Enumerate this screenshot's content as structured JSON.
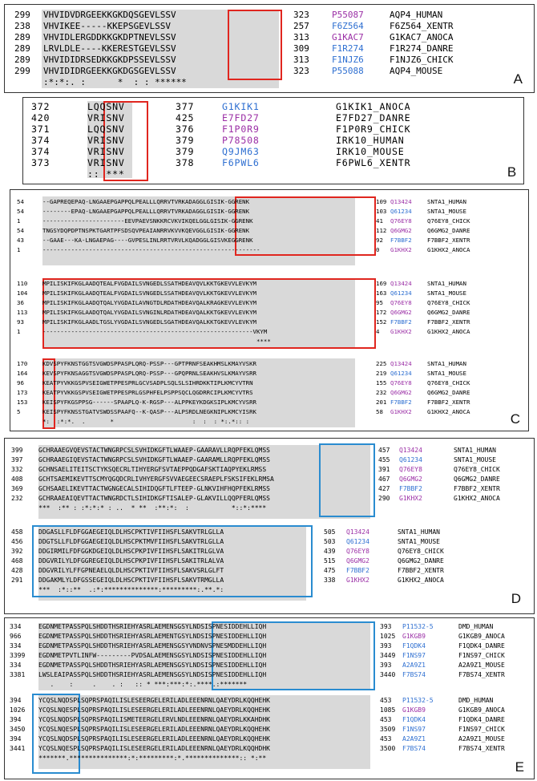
{
  "figure": {
    "panels": [
      {
        "id": "A",
        "label": "A",
        "blocks": [
          {
            "rows": [
              {
                "s": "299",
                "seq": "VHVIDVDRGEEKKGKDQSGEVLSSV",
                "e": "323",
                "acc": "P55087",
                "acc_color": "p",
                "name": "AQP4_HUMAN"
              },
              {
                "s": "238",
                "seq": "VHVIKEE-----KKEPSGEVLSSV",
                "e": "257",
                "acc": "F6Z564",
                "acc_color": "b",
                "name": "F6Z564_XENTR"
              },
              {
                "s": "289",
                "seq": "VHVIDLERGDDKKGKDPTNEVLSSV",
                "e": "313",
                "acc": "G1KAC7",
                "acc_color": "p",
                "name": "G1KAC7_ANOCA"
              },
              {
                "s": "289",
                "seq": "LRVLDLE----KKERESTGEVLSSV",
                "e": "309",
                "acc": "F1R274",
                "acc_color": "b",
                "name": "F1R274_DANRE"
              },
              {
                "s": "289",
                "seq": "VHVIDIDRSEDKKGKDPSSEVLSSV",
                "e": "313",
                "acc": "F1NJZ6",
                "acc_color": "b",
                "name": "F1NJZ6_CHICK"
              },
              {
                "s": "299",
                "seq": "VHVIDIDRGEEKKGKDGSGEVLSSV",
                "e": "323",
                "acc": "P55088",
                "acc_color": "b",
                "name": "AQP4_MOUSE"
              }
            ],
            "consensus": ":*:*:. :      *  : : ******"
          }
        ]
      },
      {
        "id": "B",
        "label": "B",
        "blocks": [
          {
            "rows": [
              {
                "s": "372",
                "seq": "LQQSNV",
                "e": "377",
                "acc": "G1KIK1",
                "acc_color": "b",
                "name": "G1KIK1_ANOCA"
              },
              {
                "s": "420",
                "seq": "VRISNV",
                "e": "425",
                "acc": "E7FD27",
                "acc_color": "p",
                "name": "E7FD27_DANRE"
              },
              {
                "s": "371",
                "seq": "LQQSNV",
                "e": "376",
                "acc": "F1P0R9",
                "acc_color": "p",
                "name": "F1P0R9_CHICK"
              },
              {
                "s": "374",
                "seq": "VRISNV",
                "e": "379",
                "acc": "P78508",
                "acc_color": "p",
                "name": "IRK10_HUMAN"
              },
              {
                "s": "374",
                "seq": "VRISNV",
                "e": "379",
                "acc": "Q9JM63",
                "acc_color": "b",
                "name": "IRK10_MOUSE"
              },
              {
                "s": "373",
                "seq": "VRISNV",
                "e": "378",
                "acc": "F6PWL6",
                "acc_color": "b",
                "name": "F6PWL6_XENTR"
              }
            ],
            "consensus": ":: ***"
          }
        ]
      },
      {
        "id": "C",
        "label": "C",
        "blocks": [
          {
            "rows": [
              {
                "s": "54",
                "seq": "--GAPREQEPAQ-LNGAAEPGAPPQLPEALLLQRRVTVRKADAGGLGISIK-GGRENK",
                "e": "109",
                "acc": "Q13424",
                "acc_color": "p",
                "name": "SNTA1_HUMAN"
              },
              {
                "s": "54",
                "seq": "--------EPAQ-LNGAAEPGAPPQLPEALLLQRRVTVRKADAGGLGISIK-GGRENK",
                "e": "103",
                "acc": "Q61234",
                "acc_color": "b",
                "name": "SNTA1_MOUSE"
              },
              {
                "s": "1",
                "seq": "-----------------------EEVPAEVSNKKRCVKVIKQELGGLGISIK-GGRENK",
                "e": "41",
                "acc": "Q76EY8",
                "acc_color": "p",
                "name": "Q76EY8_CHICK"
              },
              {
                "s": "54",
                "seq": "TNGSYDQPDPTNSPKTGARTPFSDSQVPEAIANRRVKVVKQEVGGLGISIK-GGRENK",
                "e": "112",
                "acc": "Q6GMG2",
                "acc_color": "p",
                "name": "Q6GMG2_DANRE"
              },
              {
                "s": "43",
                "seq": "--GAAE---KA-LNGAEPAG----GVPESLINLRRTVRVLKQADGGLGISVKEGGRENK",
                "e": "92",
                "acc": "F7BBF2",
                "acc_color": "b",
                "name": "F7BBF2_XENTR"
              },
              {
                "s": "1",
                "seq": "-------------------------------------------------------------",
                "e": "0",
                "acc": "G1KHX2",
                "acc_color": "p",
                "name": "G1KHX2_ANOCA"
              }
            ],
            "consensus": ""
          },
          {
            "rows": [
              {
                "s": "110",
                "seq": "MPILISKIFKGLAADQTEALFVGDAILSVNGEDLSSATHDEAVQVLKKTGKEVVLEVKYM",
                "e": "169",
                "acc": "Q13424",
                "acc_color": "p",
                "name": "SNTA1_HUMAN"
              },
              {
                "s": "104",
                "seq": "MPILISKIFKGLAADQTEALFVGDAILSVNGEDLSSATHDEAVQVLKKTGKEVVLEVKYM",
                "e": "163",
                "acc": "Q61234",
                "acc_color": "b",
                "name": "SNTA1_MOUSE"
              },
              {
                "s": "36",
                "seq": "MPILISKIFKGLAADQTQALYVGDAILAVNGTDLRDATHDEAVQALKRAGKEVVLEVKYM",
                "e": "95",
                "acc": "Q76EY8",
                "acc_color": "p",
                "name": "Q76EY8_CHICK"
              },
              {
                "s": "113",
                "seq": "MPILISKIFKGLAADQTQALYVGDAILSVNGINLRDATHDEAVQALKKTGKEVVLEVKYM",
                "e": "172",
                "acc": "Q6GMG2",
                "acc_color": "p",
                "name": "Q6GMG2_DANRE"
              },
              {
                "s": "93",
                "seq": "MPILISKIFKGLAADLTGSLYVGDAILSVNGEDLSGATHDEAVQALKKTGKEVVLEVKYM",
                "e": "152",
                "acc": "F7BBF2",
                "acc_color": "b",
                "name": "F7BBF2_XENTR"
              },
              {
                "s": "1",
                "seq": "-----------------------------------------------------------VKYM",
                "e": "4",
                "acc": "G1KHX2",
                "acc_color": "p",
                "name": "G1KHX2_ANOCA"
              }
            ],
            "consensus": "                                                            ****"
          },
          {
            "rows": [
              {
                "s": "170",
                "seq": "KDVSPYFKNSTGGTSVGWDSPPASPLQRQ-PSSP---GPTPRNFSEAKHMSLKMAYVSKR",
                "e": "225",
                "acc": "Q13424",
                "acc_color": "p",
                "name": "SNTA1_HUMAN"
              },
              {
                "s": "164",
                "seq": "KEVSPYFKNSAGGTSVGWDSPPASPLQRQ-PSSP---GPQPRNLSEAKHVSLKMAYVSRR",
                "e": "219",
                "acc": "Q61234",
                "acc_color": "b",
                "name": "SNTA1_MOUSE"
              },
              {
                "s": "96",
                "seq": "KEATPYVKKGSPVSEIGWETPPESPRLGCVSADPLSQLSLSIHRDKKTIPLKMCYVTRN",
                "e": "155",
                "acc": "Q76EY8",
                "acc_color": "p",
                "name": "Q76EY8_CHICK"
              },
              {
                "s": "173",
                "seq": "KEATPYVKKGSPVSEIGWETPPESPRLGSPHFELPSPPSQCLQGDRRCIPLKMCYVTRS",
                "e": "232",
                "acc": "Q6GMG2",
                "acc_color": "p",
                "name": "Q6GMG2_DANRE"
              },
              {
                "s": "153",
                "seq": "KEISPYFKGSPPSG------SPAAPLQ-K-RGSP---ALPPKEYKDGKSIPLKMCYVSRR",
                "e": "201",
                "acc": "F7BBF2",
                "acc_color": "b",
                "name": "F7BBF2_XENTR"
              },
              {
                "s": "5",
                "seq": "KEISPYFKNSSTGATVSWDSSPAAFQ--K-QASP---ALPSRDLNEGKNIPLKMCYISRK",
                "e": "58",
                "acc": "G1KHX2",
                "acc_color": "p",
                "name": "G1KHX2_ANOCA"
              }
            ],
            "consensus": "*:  :*:*.  .       *                      :  :  : *:.*:: :"
          }
        ]
      },
      {
        "id": "D",
        "label": "D",
        "blocks": [
          {
            "rows": [
              {
                "s": "399",
                "seq": "GCHRAAEGVQEVSTACTWNGRPCSLSVHIDKGFTLWAAEP-GAARAVLLRQPFEKLQMSS",
                "e": "457",
                "acc": "Q13424",
                "acc_color": "p",
                "name": "SNTA1_HUMAN"
              },
              {
                "s": "397",
                "seq": "GCHRAAEGIQEVSTACTWNGRPCSLSVHIDKGFTLWAAEP-GAARAMLLRQPFEKLQMSS",
                "e": "455",
                "acc": "Q61234",
                "acc_color": "b",
                "name": "SNTA1_MOUSE"
              },
              {
                "s": "332",
                "seq": "GCHNSAELITEITSCTYKSQECRLTIHYERGFSVTAEPPQDGAFSKTIAQPYEKLRMSS",
                "e": "391",
                "acc": "Q76EY8",
                "acc_color": "p",
                "name": "Q76EY8_CHICK"
              },
              {
                "s": "408",
                "seq": "GCHTSAEMIKEVTTSCMYQGQDCRLIVHYERGFSVVAEGEECSRAEPLFSKSIFEKLRMSA",
                "e": "467",
                "acc": "Q6GMG2",
                "acc_color": "p",
                "name": "Q6GMG2_DANRE"
              },
              {
                "s": "369",
                "seq": "GCHSAAELIKEVTTACTWGNGECALSIHIDQGFTLFTEEP-GLNKVIHFHQPFEKLRMSS",
                "e": "427",
                "acc": "F7BBF2",
                "acc_color": "b",
                "name": "F7BBF2_XENTR"
              },
              {
                "s": "232",
                "seq": "GCHRAAEAIQEVTTACTWNGRDCTLSIHIDKGFTISALEP-GLAKVILLQQPFERLQMSS",
                "e": "290",
                "acc": "G1KHX2",
                "acc_color": "p",
                "name": "G1KHX2_ANOCA"
              }
            ],
            "consensus": "***  :** : :*:*:* : ..  * **  :**:*:  :           *::*:****"
          },
          {
            "rows": [
              {
                "s": "458",
                "seq": "DDGASLLFLDFGGAEGEIQLDLHSCPKTIVFIIHSFLSAKVTRLGLLA",
                "e": "505",
                "acc": "Q13424",
                "acc_color": "p",
                "name": "SNTA1_HUMAN"
              },
              {
                "s": "456",
                "seq": "DDGTSLLFLDFGGAEGEIQLDLHSCPKTMVFIIHSFLSAKVTRLGLLA",
                "e": "503",
                "acc": "Q61234",
                "acc_color": "b",
                "name": "SNTA1_MOUSE"
              },
              {
                "s": "392",
                "seq": "DDGIRMILFDFGGKDGEIQLDLHSCPKPIVFIIHSFLSAKITRLGLVA",
                "e": "439",
                "acc": "Q76EY8",
                "acc_color": "p",
                "name": "Q76EY8_CHICK"
              },
              {
                "s": "468",
                "seq": "DDGVRILYLDFGGREGEIQLDLHSCPKPIVFIIHSFLSAKITRLALVA",
                "e": "515",
                "acc": "Q6GMG2",
                "acc_color": "p",
                "name": "Q6GMG2_DANRE"
              },
              {
                "s": "428",
                "seq": "DDGVRILYLFFGPNEAELQLDLHSCPKTIVFIIHSFLSAKVSRLGLFT",
                "e": "475",
                "acc": "F7BBF2",
                "acc_color": "b",
                "name": "F7BBF2_XENTR"
              },
              {
                "s": "291",
                "seq": "DDGAKMLYLDFGSSEGEIQLDLHSCPKTIVFIIHSFLSAKVTRMGLLA",
                "e": "338",
                "acc": "G1KHX2",
                "acc_color": "p",
                "name": "G1KHX2_ANOCA"
              }
            ],
            "consensus": "***  :*::**  .:*:**************:*********:.**.*:"
          }
        ]
      },
      {
        "id": "E",
        "label": "E",
        "blocks": [
          {
            "rows": [
              {
                "s": "334",
                "seq": "EGDNMETPASSPQLSHDDTHSRIEHYASRLAEMENSGSYLNDSISPNESIDDEHLLIQH",
                "e": "393",
                "acc": "P11532-5",
                "acc_color": "b",
                "name": "DMD_HUMAN"
              },
              {
                "s": "966",
                "seq": "EGDNMETPASSPQLSHDDTHSRIEHYASRLAEMENTGSYLNDSISPNESIDDEHLLIQH",
                "e": "1025",
                "acc": "G1KGB9",
                "acc_color": "p",
                "name": "G1KGB9_ANOCA"
              },
              {
                "s": "334",
                "seq": "EGDNMETPASSPQLSHDDTHSRIEHYASRLAEMENSGSYVNDNVSPNESMDDEHLLIQH",
                "e": "393",
                "acc": "F1QDK4",
                "acc_color": "b",
                "name": "F1QDK4_DANRE"
              },
              {
                "s": "3399",
                "seq": "EGDNMETPVTLINFW---------PVDSALAEMENSGSYLNDSISPNESIDDEHLLIQH",
                "e": "3449",
                "acc": "F1NS97",
                "acc_color": "b",
                "name": "F1NS97_CHICK"
              },
              {
                "s": "334",
                "seq": "EGDNMETPASSPQLSHDDTHSRIEHYASRLAEMENSGSYLNDSISPNESIDDEHLLIQH",
                "e": "393",
                "acc": "A2A9Z1",
                "acc_color": "b",
                "name": "A2A9Z1_MOUSE"
              },
              {
                "s": "3381",
                "seq": "LWSLEAIPASSPQLSHDDTHSRIEHYASRLAEMENSGSYLNDSISPNESIDDEHLLIQH",
                "e": "3440",
                "acc": "F7BS74",
                "acc_color": "b",
                "name": "F7BS74_XENTR"
              }
            ],
            "consensus": "   .    :     .    . :   :: * ***:***:*:.****.:*******"
          },
          {
            "rows": [
              {
                "s": "394",
                "seq": "YCQSLNQDSPLSQPRSPAQILISLESEERGELERILADLEEENRNLQAEYDRLKQQHEHK",
                "e": "453",
                "acc": "P11532-5",
                "acc_color": "b",
                "name": "DMD_HUMAN"
              },
              {
                "s": "1026",
                "seq": "YCQSLNQESPLSQPRSPAQILISLESEERGELERILADLEEENRNLQAEYDRLKQQHEHK",
                "e": "1085",
                "acc": "G1KGB9",
                "acc_color": "p",
                "name": "G1KGB9_ANOCA"
              },
              {
                "s": "394",
                "seq": "YCQSLNQDSPLSQPRSPAQILISMETEERGELERVLNDLEEENRNLQAEYDRLKKAHDHK",
                "e": "453",
                "acc": "F1QDK4",
                "acc_color": "b",
                "name": "F1QDK4_DANRE"
              },
              {
                "s": "3450",
                "seq": "YCQSLNQESPLSQPRSPAQILISLESEERGELERILADLEEENRNLQAEYDRLKQQHEHK",
                "e": "3509",
                "acc": "F1NS97",
                "acc_color": "b",
                "name": "F1NS97_CHICK"
              },
              {
                "s": "394",
                "seq": "YCQSLNQDSPLSQPRSPAQILISLESEERGELERILADLEEENRNLQAEYDRLKQQHEHK",
                "e": "453",
                "acc": "A2A9Z1",
                "acc_color": "b",
                "name": "A2A9Z1_MOUSE"
              },
              {
                "s": "3441",
                "seq": "YCQSLNQESPLSQPRSPAQILISLESEERGELERILADLEEENRNLQAEYDRLKQQHDHK",
                "e": "3500",
                "acc": "F7BS74",
                "acc_color": "b",
                "name": "F7BS74_XENTR"
              }
            ],
            "consensus": "*******.***************:*:*********:*.**************:: *:**"
          }
        ]
      }
    ]
  }
}
